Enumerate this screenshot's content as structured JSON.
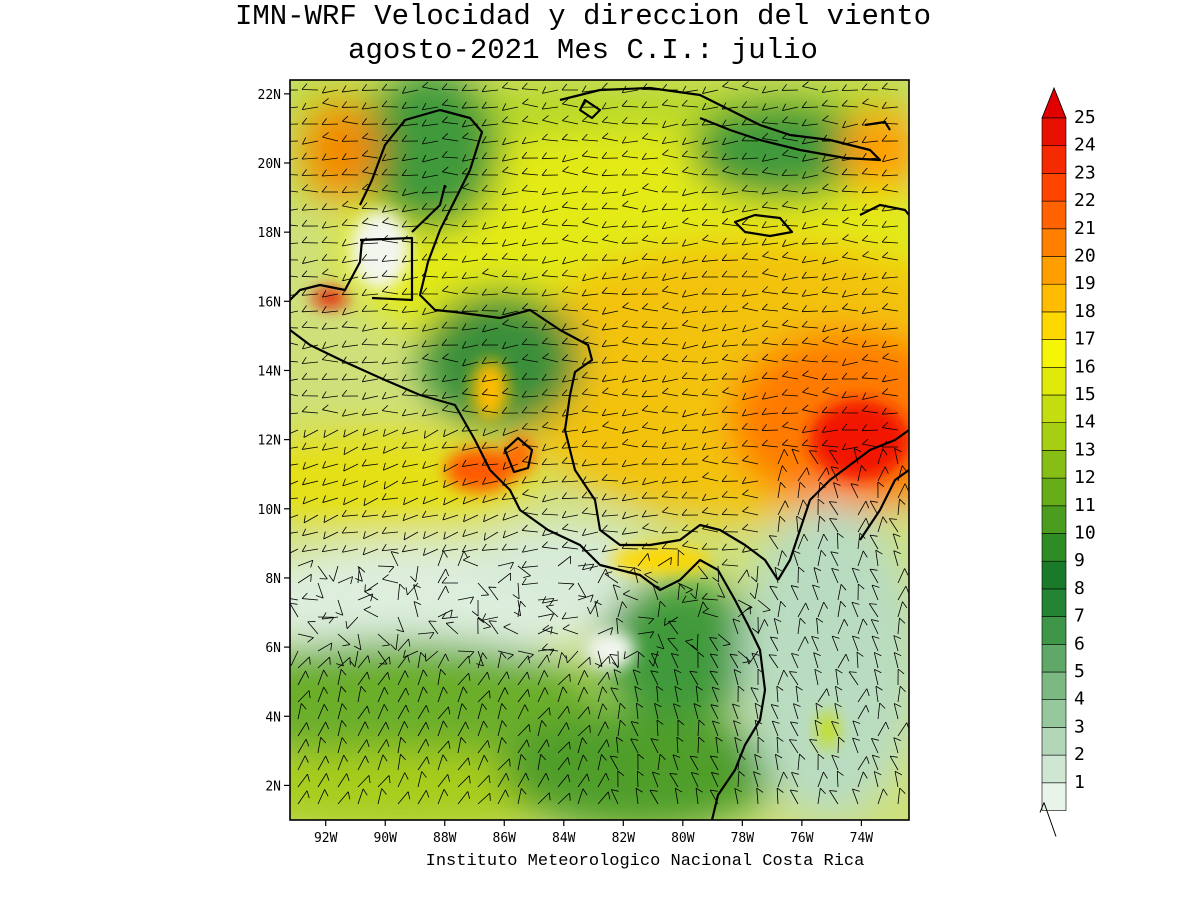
{
  "title": {
    "line1": "IMN-WRF Velocidad y direccion del viento",
    "line2": "agosto-2021 Mes C.I.: julio"
  },
  "credit": "Instituto Meteorologico Nacional Costa Rica",
  "map": {
    "lat_ticks": [
      "22N",
      "20N",
      "18N",
      "16N",
      "14N",
      "12N",
      "10N",
      "8N",
      "6N",
      "4N",
      "2N"
    ],
    "lon_ticks": [
      "92W",
      "90W",
      "88W",
      "86W",
      "84W",
      "82W",
      "80W",
      "78W",
      "76W",
      "74W"
    ],
    "lat_range": [
      1,
      22.4
    ],
    "lon_range": [
      93.2,
      72.4
    ]
  },
  "colorbar": {
    "labels": [
      "25",
      "24",
      "23",
      "22",
      "21",
      "20",
      "19",
      "18",
      "17",
      "16",
      "15",
      "14",
      "13",
      "12",
      "11",
      "10",
      "9",
      "8",
      "7",
      "6",
      "5",
      "4",
      "3",
      "2",
      "1"
    ],
    "colors": [
      "#e8f3ea",
      "#cfe6d3",
      "#b3d6b8",
      "#97c79d",
      "#7bb882",
      "#5fa868",
      "#3f9649",
      "#238534",
      "#1a7a2a",
      "#2f8c24",
      "#4a9d1f",
      "#67ad1a",
      "#86be16",
      "#a6ce12",
      "#c4dd0e",
      "#dfea0a",
      "#f6f407",
      "#ffd800",
      "#ffbc00",
      "#ff9e00",
      "#ff8000",
      "#ff6200",
      "#ff4400",
      "#f62a00",
      "#e81000"
    ],
    "over_color": "#e00000"
  },
  "colors": {
    "land_border": "#000000",
    "vector": "#000000"
  }
}
